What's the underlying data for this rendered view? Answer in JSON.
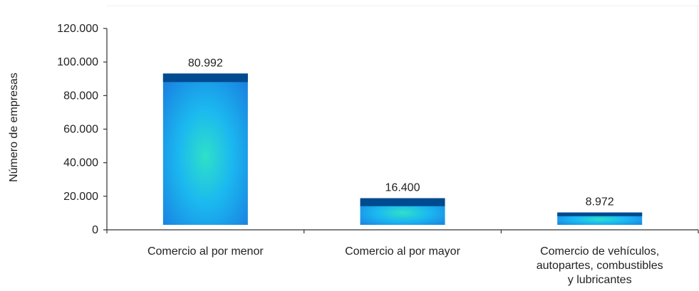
{
  "chart_data": {
    "type": "bar",
    "title": "",
    "xlabel": "",
    "ylabel": "Número de empresas",
    "ylim": [
      0,
      120000
    ],
    "yticks": [
      0,
      20000,
      40000,
      60000,
      80000,
      100000,
      120000
    ],
    "ytick_labels": [
      "0",
      "20.000",
      "40.000",
      "60.000",
      "80.000",
      "100.000",
      "120.000"
    ],
    "categories": [
      [
        "Comercio al por menor"
      ],
      [
        "Comercio al por mayor"
      ],
      [
        "Comercio de vehículos,",
        "autopartes, combustibles",
        "y lubricantes"
      ]
    ],
    "values": [
      80992,
      16400,
      8972
    ],
    "data_labels": [
      "80.992",
      "16.400",
      "8.972"
    ],
    "grid": false,
    "legend": "none",
    "colors": {
      "bar_top": "#004a8f",
      "bar_center": "#2fe0c8",
      "bar_edge": "#1a7fe0",
      "axis": "#333333"
    }
  }
}
